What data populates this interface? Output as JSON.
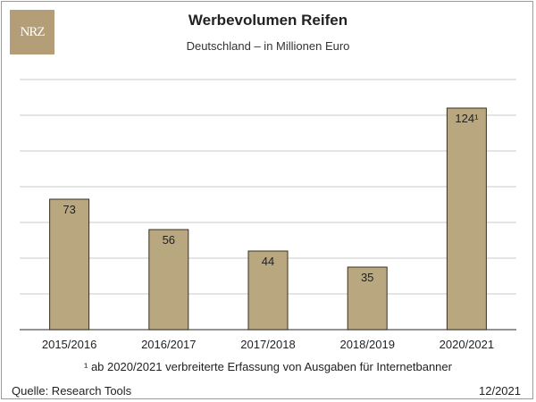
{
  "logo_text": "NRZ",
  "title": "Werbevolumen Reifen",
  "subtitle": "Deutschland – in Millionen Euro",
  "footnote": "¹ ab 2020/2021 verbreiterte Erfassung von Ausgaben für Internetbanner",
  "source": "Quelle: Research Tools",
  "date": "12/2021",
  "colors": {
    "bar": "#b9a77f",
    "bar_border": "#3a3020",
    "grid": "#c8c8c8"
  },
  "chart_data": {
    "type": "bar",
    "title": "Werbevolumen Reifen",
    "subtitle": "Deutschland – in Millionen Euro",
    "categories": [
      "2015/2016",
      "2016/2017",
      "2017/2018",
      "2018/2019",
      "2020/2021"
    ],
    "values": [
      73,
      56,
      44,
      35,
      124
    ],
    "data_labels": [
      "73",
      "56",
      "44",
      "35",
      "124¹"
    ],
    "ylim": [
      0,
      140
    ],
    "grid": true,
    "xlabel": "",
    "ylabel": ""
  }
}
